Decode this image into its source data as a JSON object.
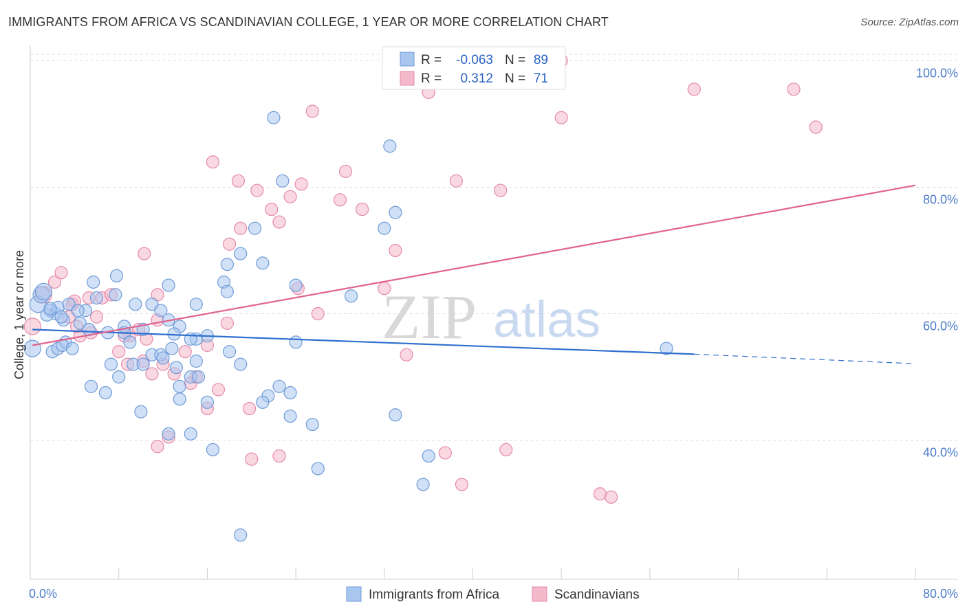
{
  "title": "IMMIGRANTS FROM AFRICA VS SCANDINAVIAN COLLEGE, 1 YEAR OR MORE CORRELATION CHART",
  "source": "Source: ZipAtlas.com",
  "watermark": {
    "zip": "ZIP",
    "atlas": "atlas"
  },
  "colors": {
    "blue_fill": "#a9c6ee",
    "blue_stroke": "#6f9bd8",
    "blue_line": "#2f6fcf",
    "pink_fill": "#f4b8cb",
    "pink_stroke": "#e58aa8",
    "pink_line": "#e0638e",
    "axis_text": "#4a7cc9"
  },
  "legend": {
    "rows": [
      {
        "r_label": "R =",
        "r_value": "-0.063",
        "n_label": "N =",
        "n_value": "89"
      },
      {
        "r_label": "R =",
        "r_value": "0.312",
        "n_label": "N =",
        "n_value": "71"
      }
    ]
  },
  "chart_data": {
    "type": "scatter",
    "title": "IMMIGRANTS FROM AFRICA VS SCANDINAVIAN COLLEGE, 1 YEAR OR MORE CORRELATION CHART",
    "xlabel": "",
    "ylabel": "College, 1 year or more",
    "xlim": [
      0,
      80
    ],
    "ylim": [
      18,
      102
    ],
    "x_tick_labels": [
      "0.0%",
      "80.0%"
    ],
    "y_tick_labels": [
      "40.0%",
      "60.0%",
      "80.0%",
      "100.0%"
    ],
    "y_ticks": [
      40,
      60,
      80,
      100
    ],
    "grid": true,
    "legend_position": "bottom",
    "series": [
      {
        "name": "Immigrants from Africa",
        "color": "#a9c6ee",
        "trend": {
          "x": [
            0.2,
            60
          ],
          "y": [
            57.5,
            53.6
          ],
          "dashed_extension": {
            "x": [
              60,
              80
            ],
            "y": [
              53.6,
              52.1
            ]
          }
        },
        "points": [
          [
            0.2,
            54.5
          ],
          [
            0.7,
            61.5
          ],
          [
            1.0,
            63.0
          ],
          [
            1.2,
            63.5
          ],
          [
            1.8,
            60.5
          ],
          [
            2.3,
            60.0
          ],
          [
            2.5,
            61.0
          ],
          [
            3.0,
            59.0
          ],
          [
            3.5,
            61.5
          ],
          [
            4.5,
            58.5
          ],
          [
            5.0,
            60.5
          ],
          [
            1.5,
            59.8
          ],
          [
            1.8,
            60.8
          ],
          [
            2.8,
            59.5
          ],
          [
            4.3,
            60.5
          ],
          [
            2.0,
            54.0
          ],
          [
            2.5,
            54.5
          ],
          [
            5.3,
            57.5
          ],
          [
            8.5,
            58.0
          ],
          [
            9.5,
            61.5
          ],
          [
            3.2,
            55.5
          ],
          [
            2.9,
            55.0
          ],
          [
            3.8,
            54.5
          ],
          [
            6.0,
            62.5
          ],
          [
            7.7,
            63.0
          ],
          [
            11.0,
            61.5
          ],
          [
            12.5,
            64.5
          ],
          [
            15.0,
            61.5
          ],
          [
            5.7,
            65.0
          ],
          [
            7.8,
            66.0
          ],
          [
            17.5,
            65.0
          ],
          [
            19.0,
            69.5
          ],
          [
            17.8,
            67.8
          ],
          [
            21.0,
            68.0
          ],
          [
            20.3,
            73.5
          ],
          [
            22.8,
            81.0
          ],
          [
            22.0,
            91.0
          ],
          [
            24.0,
            64.5
          ],
          [
            32.0,
            73.5
          ],
          [
            33.0,
            76.0
          ],
          [
            32.5,
            86.5
          ],
          [
            29.0,
            62.8
          ],
          [
            17.8,
            63.5
          ],
          [
            13.5,
            58.0
          ],
          [
            13.0,
            56.8
          ],
          [
            11.8,
            60.5
          ],
          [
            12.5,
            59.0
          ],
          [
            16.0,
            56.5
          ],
          [
            15.0,
            56.0
          ],
          [
            14.5,
            56.0
          ],
          [
            12.8,
            54.5
          ],
          [
            7.0,
            57.0
          ],
          [
            8.5,
            57.0
          ],
          [
            9.0,
            55.5
          ],
          [
            10.2,
            57.5
          ],
          [
            11.0,
            53.5
          ],
          [
            11.8,
            53.5
          ],
          [
            12.0,
            53.0
          ],
          [
            18.0,
            54.0
          ],
          [
            19.0,
            52.0
          ],
          [
            24.0,
            55.5
          ],
          [
            7.3,
            52.0
          ],
          [
            8.0,
            50.0
          ],
          [
            9.3,
            52.0
          ],
          [
            10.2,
            52.0
          ],
          [
            13.2,
            51.5
          ],
          [
            13.5,
            48.5
          ],
          [
            14.5,
            50.0
          ],
          [
            15.0,
            52.5
          ],
          [
            15.2,
            50.0
          ],
          [
            5.5,
            48.5
          ],
          [
            6.8,
            47.5
          ],
          [
            21.5,
            47.0
          ],
          [
            22.5,
            48.5
          ],
          [
            23.5,
            47.5
          ],
          [
            13.5,
            46.5
          ],
          [
            16.0,
            46.0
          ],
          [
            21.0,
            46.0
          ],
          [
            10.0,
            44.5
          ],
          [
            23.5,
            43.8
          ],
          [
            25.5,
            42.5
          ],
          [
            33.0,
            44.0
          ],
          [
            14.5,
            41.0
          ],
          [
            12.5,
            41.0
          ],
          [
            16.5,
            38.5
          ],
          [
            36.0,
            37.5
          ],
          [
            26.0,
            35.5
          ],
          [
            35.5,
            33.0
          ],
          [
            19.0,
            25.0
          ],
          [
            57.5,
            54.5
          ]
        ]
      },
      {
        "name": "Scandinavians",
        "color": "#f4b8cb",
        "trend": {
          "x": [
            0.2,
            80
          ],
          "y": [
            55.0,
            80.3
          ]
        },
        "points": [
          [
            0.2,
            58.0
          ],
          [
            1.2,
            63.0
          ],
          [
            2.2,
            65.0
          ],
          [
            2.8,
            66.5
          ],
          [
            3.5,
            59.5
          ],
          [
            3.8,
            61.5
          ],
          [
            4.0,
            62.0
          ],
          [
            4.5,
            56.5
          ],
          [
            4.2,
            58.0
          ],
          [
            5.3,
            62.5
          ],
          [
            6.0,
            59.5
          ],
          [
            6.5,
            62.5
          ],
          [
            7.3,
            63.0
          ],
          [
            8.0,
            54.0
          ],
          [
            8.8,
            52.0
          ],
          [
            9.0,
            56.5
          ],
          [
            9.8,
            57.5
          ],
          [
            10.2,
            52.5
          ],
          [
            10.5,
            56.0
          ],
          [
            11.0,
            50.5
          ],
          [
            11.5,
            59.0
          ],
          [
            12.0,
            52.0
          ],
          [
            13.0,
            50.5
          ],
          [
            14.0,
            54.0
          ],
          [
            14.5,
            49.0
          ],
          [
            15.0,
            50.0
          ],
          [
            16.0,
            55.0
          ],
          [
            17.0,
            48.0
          ],
          [
            17.8,
            58.5
          ],
          [
            18.8,
            81.0
          ],
          [
            18.0,
            71.0
          ],
          [
            19.0,
            73.5
          ],
          [
            20.5,
            79.5
          ],
          [
            21.8,
            76.5
          ],
          [
            22.5,
            74.5
          ],
          [
            23.5,
            78.5
          ],
          [
            24.2,
            64.0
          ],
          [
            24.5,
            80.5
          ],
          [
            25.5,
            92.0
          ],
          [
            26.0,
            60.0
          ],
          [
            28.0,
            78.0
          ],
          [
            28.5,
            82.5
          ],
          [
            30.0,
            76.5
          ],
          [
            32.0,
            64.0
          ],
          [
            33.0,
            70.0
          ],
          [
            34.0,
            53.5
          ],
          [
            36.0,
            95.0
          ],
          [
            37.0,
            99.5
          ],
          [
            37.5,
            38.0
          ],
          [
            38.5,
            81.0
          ],
          [
            39.0,
            33.0
          ],
          [
            42.5,
            79.5
          ],
          [
            43.0,
            38.5
          ],
          [
            48.0,
            100.0
          ],
          [
            48.0,
            91.0
          ],
          [
            51.5,
            31.5
          ],
          [
            52.5,
            31.0
          ],
          [
            60.0,
            95.5
          ],
          [
            69.0,
            95.5
          ],
          [
            71.0,
            89.5
          ],
          [
            5.5,
            57.0
          ],
          [
            8.5,
            56.5
          ],
          [
            10.3,
            69.5
          ],
          [
            11.5,
            63.0
          ],
          [
            16.5,
            84.0
          ],
          [
            19.8,
            45.0
          ],
          [
            20.0,
            37.0
          ],
          [
            16.0,
            45.0
          ],
          [
            11.5,
            39.0
          ],
          [
            12.5,
            40.5
          ],
          [
            22.5,
            37.5
          ]
        ]
      }
    ]
  }
}
